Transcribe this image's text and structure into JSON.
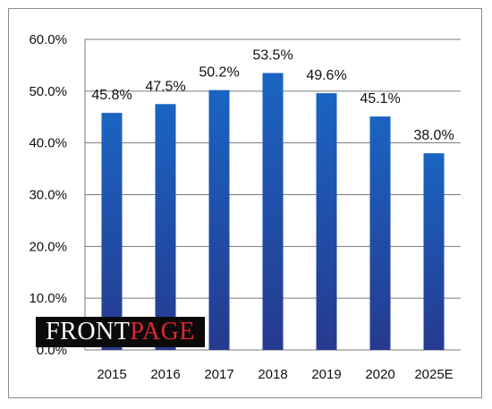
{
  "chart_data": {
    "type": "bar",
    "categories": [
      "2015",
      "2016",
      "2017",
      "2018",
      "2019",
      "2020",
      "2025E"
    ],
    "values": [
      45.8,
      47.5,
      50.2,
      53.5,
      49.6,
      45.1,
      38.0
    ],
    "data_labels": [
      "45.8%",
      "47.5%",
      "50.2%",
      "53.5%",
      "49.6%",
      "45.1%",
      "38.0%"
    ],
    "title": "",
    "xlabel": "",
    "ylabel": "",
    "ylim": [
      0,
      60
    ],
    "y_ticks": [
      {
        "value": 0,
        "label": "0.0%"
      },
      {
        "value": 10,
        "label": "10.0%"
      },
      {
        "value": 20,
        "label": "20.0%"
      },
      {
        "value": 30,
        "label": "30.0%"
      },
      {
        "value": 40,
        "label": "40.0%"
      },
      {
        "value": 50,
        "label": "50.0%"
      },
      {
        "value": 60,
        "label": "60.0%"
      }
    ],
    "grid": true,
    "legend": "none",
    "colors": {
      "bar_top": "#1a64c2",
      "bar_bottom": "#263a8f",
      "grid": "#7a7a7a"
    }
  },
  "watermark": {
    "front": "FRONT",
    "page": "PAGE",
    "front_color": "#ffffff",
    "page_color": "#e0262b"
  }
}
